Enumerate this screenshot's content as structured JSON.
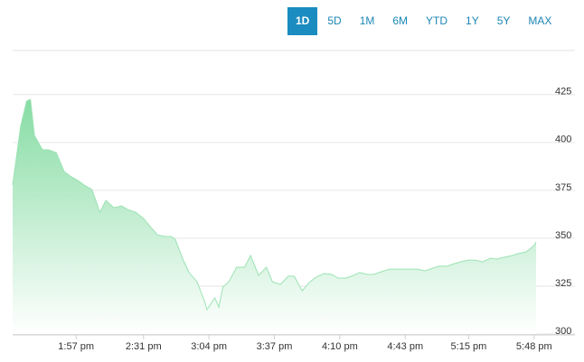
{
  "range_buttons": {
    "items": [
      "1D",
      "5D",
      "1M",
      "6M",
      "YTD",
      "1Y",
      "5Y",
      "MAX"
    ],
    "selected": "1D"
  },
  "chart_data": {
    "type": "area",
    "color": "#86dca3",
    "line_color": "#9be3b3",
    "grid": true,
    "x": [
      805,
      809,
      812,
      814,
      816,
      820,
      823,
      827,
      831,
      834,
      838,
      841,
      845,
      849,
      852,
      856,
      860,
      863,
      867,
      871,
      874,
      878,
      882,
      885,
      887,
      891,
      894,
      898,
      902,
      903,
      907,
      909,
      911,
      914,
      918,
      922,
      925,
      929,
      933,
      936,
      940,
      944,
      947,
      951,
      955,
      958,
      962,
      966,
      969,
      973,
      976,
      980,
      984,
      987,
      991,
      995,
      998,
      1002,
      1006,
      1009,
      1013,
      1017,
      1020,
      1024,
      1028,
      1031,
      1035,
      1038,
      1042,
      1046,
      1049,
      1053,
      1057,
      1060,
      1064,
      1068,
      1069
    ],
    "values": [
      377.8,
      408.4,
      421.6,
      422.5,
      403.7,
      396.2,
      396.2,
      394.7,
      384.8,
      382.5,
      380.1,
      377.8,
      375.4,
      363.6,
      369.8,
      366,
      366.9,
      365,
      363.6,
      360.3,
      356.6,
      351.8,
      350.9,
      350.9,
      349.5,
      338.7,
      332.1,
      327.3,
      316.5,
      312.7,
      318.9,
      314.1,
      324.5,
      327.3,
      334.9,
      334.9,
      341,
      330.6,
      334.9,
      327.3,
      325.9,
      330.2,
      330.2,
      322.6,
      327.3,
      329.7,
      331.6,
      331.1,
      329.2,
      329.2,
      330.2,
      332.1,
      331.1,
      331.1,
      332.5,
      333.9,
      333.9,
      333.9,
      333.9,
      333.9,
      333,
      334.4,
      335.4,
      335.4,
      336.8,
      337.7,
      338.6,
      338.6,
      337.7,
      339.6,
      339.1,
      340.1,
      341,
      342,
      342.9,
      346.2,
      348.1
    ],
    "xlim": [
      805,
      1069
    ],
    "xticks": [
      {
        "value": 837,
        "label": "1:57 pm"
      },
      {
        "value": 871,
        "label": "2:31 pm"
      },
      {
        "value": 904,
        "label": "3:04 pm"
      },
      {
        "value": 937,
        "label": "3:37 pm"
      },
      {
        "value": 970,
        "label": "4:10 pm"
      },
      {
        "value": 1003,
        "label": "4:43 pm"
      },
      {
        "value": 1035,
        "label": "5:15 pm"
      },
      {
        "value": 1068,
        "label": "5:48 pm"
      }
    ],
    "ylim": [
      300,
      448
    ],
    "yticks": [
      300,
      325,
      350,
      375,
      400,
      425
    ]
  }
}
